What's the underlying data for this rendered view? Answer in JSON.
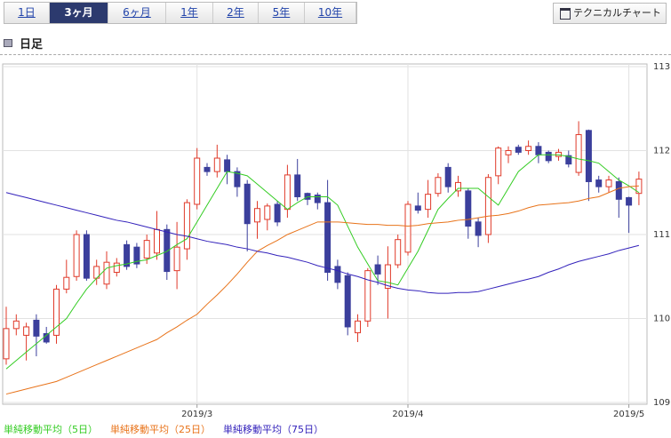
{
  "tabs": [
    "1日",
    "3ヶ月",
    "6ヶ月",
    "1年",
    "2年",
    "5年",
    "10年"
  ],
  "selected_tab": 1,
  "technical_button": "テクニカルチャート",
  "section_title": "日足",
  "chart_data": {
    "type": "candlestick",
    "categories": [
      null,
      null,
      null,
      null,
      null,
      null,
      null,
      null,
      null,
      null,
      null,
      null,
      null,
      null,
      null,
      null,
      null,
      null,
      null,
      "2019/3",
      null,
      null,
      null,
      null,
      null,
      null,
      null,
      null,
      null,
      null,
      null,
      null,
      null,
      null,
      null,
      null,
      null,
      null,
      null,
      null,
      "2019/4",
      null,
      null,
      null,
      null,
      null,
      null,
      null,
      null,
      null,
      null,
      null,
      null,
      null,
      null,
      null,
      null,
      null,
      null,
      null,
      null,
      null,
      "2019/5",
      null
    ],
    "open": [
      109.52,
      109.88,
      109.8,
      109.98,
      109.82,
      109.8,
      110.35,
      110.5,
      111.0,
      110.48,
      110.41,
      110.55,
      110.88,
      110.85,
      110.72,
      110.78,
      111.06,
      110.57,
      110.83,
      111.36,
      111.8,
      111.75,
      111.89,
      111.75,
      111.6,
      111.15,
      111.18,
      111.36,
      111.3,
      111.71,
      111.49,
      111.47,
      111.38,
      110.62,
      110.51,
      109.83,
      109.97,
      110.64,
      110.36,
      110.64,
      110.79,
      111.34,
      111.3,
      111.49,
      111.8,
      111.52,
      111.52,
      111.15,
      111.0,
      111.7,
      111.95,
      112.04,
      112.0,
      112.05,
      111.98,
      111.93,
      111.94,
      111.74,
      112.24,
      111.65,
      111.57,
      111.63,
      111.44,
      111.49
    ],
    "high": [
      110.14,
      110.05,
      109.95,
      110.05,
      109.9,
      110.4,
      110.7,
      111.05,
      111.05,
      110.7,
      110.8,
      110.72,
      110.93,
      110.9,
      111.0,
      111.28,
      111.12,
      111.15,
      111.42,
      112.03,
      111.85,
      112.07,
      111.95,
      111.8,
      111.65,
      111.4,
      111.37,
      111.4,
      111.83,
      111.9,
      111.5,
      111.5,
      111.65,
      110.7,
      110.55,
      110.05,
      110.6,
      110.75,
      110.86,
      111.0,
      111.4,
      111.5,
      111.65,
      111.73,
      111.85,
      111.7,
      111.55,
      111.2,
      111.72,
      112.05,
      112.05,
      112.07,
      112.12,
      112.1,
      112.0,
      112.02,
      112.0,
      112.35,
      112.25,
      111.7,
      111.7,
      111.68,
      111.45,
      111.75
    ],
    "low": [
      109.45,
      109.8,
      109.5,
      109.55,
      109.7,
      109.7,
      110.3,
      110.45,
      110.45,
      110.4,
      110.35,
      110.5,
      110.58,
      110.6,
      110.65,
      110.7,
      110.46,
      110.35,
      110.7,
      111.3,
      111.7,
      111.68,
      111.6,
      111.45,
      110.8,
      110.95,
      111.05,
      111.1,
      111.2,
      111.4,
      111.35,
      111.3,
      110.45,
      110.35,
      109.8,
      109.72,
      109.9,
      110.4,
      110.0,
      110.6,
      110.75,
      111.25,
      111.2,
      111.45,
      111.5,
      111.45,
      110.95,
      110.85,
      110.9,
      111.6,
      111.85,
      111.95,
      111.95,
      111.85,
      111.85,
      111.88,
      111.8,
      111.7,
      111.4,
      111.5,
      111.5,
      111.2,
      111.02,
      111.35
    ],
    "close": [
      109.88,
      109.97,
      109.9,
      109.79,
      109.72,
      110.35,
      110.49,
      111.0,
      110.48,
      110.62,
      110.67,
      110.66,
      110.62,
      110.65,
      110.93,
      111.06,
      110.56,
      110.85,
      111.38,
      111.91,
      111.75,
      111.91,
      111.75,
      111.57,
      111.13,
      111.31,
      111.34,
      111.15,
      111.71,
      111.45,
      111.42,
      111.38,
      110.55,
      110.43,
      109.9,
      109.97,
      110.57,
      110.53,
      110.64,
      110.94,
      111.36,
      111.29,
      111.48,
      111.68,
      111.57,
      111.62,
      111.1,
      110.99,
      111.68,
      112.03,
      112.0,
      111.98,
      112.05,
      111.95,
      111.88,
      111.98,
      111.84,
      112.19,
      111.63,
      111.57,
      111.65,
      111.42,
      111.35,
      111.66
    ],
    "up_color": "#e03a2a",
    "down_color": "#3b3f9c",
    "series": [
      {
        "name": "単純移動平均（5日）",
        "color": "#33cc22",
        "values": [
          109.4,
          109.5,
          109.6,
          109.7,
          109.8,
          109.9,
          110.0,
          110.18,
          110.35,
          110.48,
          110.6,
          110.63,
          110.65,
          110.68,
          110.7,
          110.75,
          110.8,
          110.88,
          110.95,
          111.15,
          111.35,
          111.55,
          111.75,
          111.73,
          111.7,
          111.6,
          111.5,
          111.4,
          111.3,
          111.38,
          111.45,
          111.45,
          111.45,
          111.35,
          111.1,
          110.85,
          110.65,
          110.45,
          110.43,
          110.4,
          110.6,
          110.8,
          111.05,
          111.3,
          111.43,
          111.55,
          111.55,
          111.55,
          111.45,
          111.35,
          111.55,
          111.75,
          111.85,
          111.95,
          111.95,
          111.95,
          111.93,
          111.9,
          111.88,
          111.85,
          111.75,
          111.65,
          111.58,
          111.5
        ]
      },
      {
        "name": "単純移動平均（25日）",
        "color": "#e8731a",
        "values": [
          109.1,
          109.13,
          109.16,
          109.19,
          109.22,
          109.25,
          109.3,
          109.35,
          109.4,
          109.45,
          109.5,
          109.55,
          109.6,
          109.65,
          109.7,
          109.75,
          109.83,
          109.9,
          109.98,
          110.05,
          110.17,
          110.28,
          110.4,
          110.53,
          110.67,
          110.8,
          110.87,
          110.93,
          111.0,
          111.05,
          111.1,
          111.15,
          111.15,
          111.15,
          111.14,
          111.13,
          111.12,
          111.12,
          111.11,
          111.11,
          111.1,
          111.11,
          111.13,
          111.14,
          111.15,
          111.17,
          111.18,
          111.2,
          111.22,
          111.23,
          111.25,
          111.28,
          111.32,
          111.35,
          111.36,
          111.37,
          111.38,
          111.4,
          111.43,
          111.45,
          111.5,
          111.55,
          111.57,
          111.58
        ]
      },
      {
        "name": "単純移動平均（75日）",
        "color": "#3322bb",
        "values": [
          111.5,
          111.47,
          111.44,
          111.41,
          111.38,
          111.35,
          111.32,
          111.29,
          111.26,
          111.23,
          111.2,
          111.17,
          111.15,
          111.12,
          111.09,
          111.06,
          111.03,
          111.0,
          110.98,
          110.95,
          110.92,
          110.9,
          110.88,
          110.85,
          110.83,
          110.8,
          110.78,
          110.75,
          110.73,
          110.7,
          110.67,
          110.63,
          110.6,
          110.57,
          110.53,
          110.5,
          110.46,
          110.43,
          110.39,
          110.36,
          110.34,
          110.33,
          110.31,
          110.3,
          110.3,
          110.31,
          110.31,
          110.32,
          110.35,
          110.38,
          110.41,
          110.44,
          110.47,
          110.5,
          110.55,
          110.59,
          110.64,
          110.68,
          110.71,
          110.74,
          110.77,
          110.81,
          110.84,
          110.87
        ]
      }
    ],
    "ylim": [
      109,
      113
    ],
    "yticks": [
      109,
      110,
      111,
      112,
      113
    ],
    "grid": true
  }
}
